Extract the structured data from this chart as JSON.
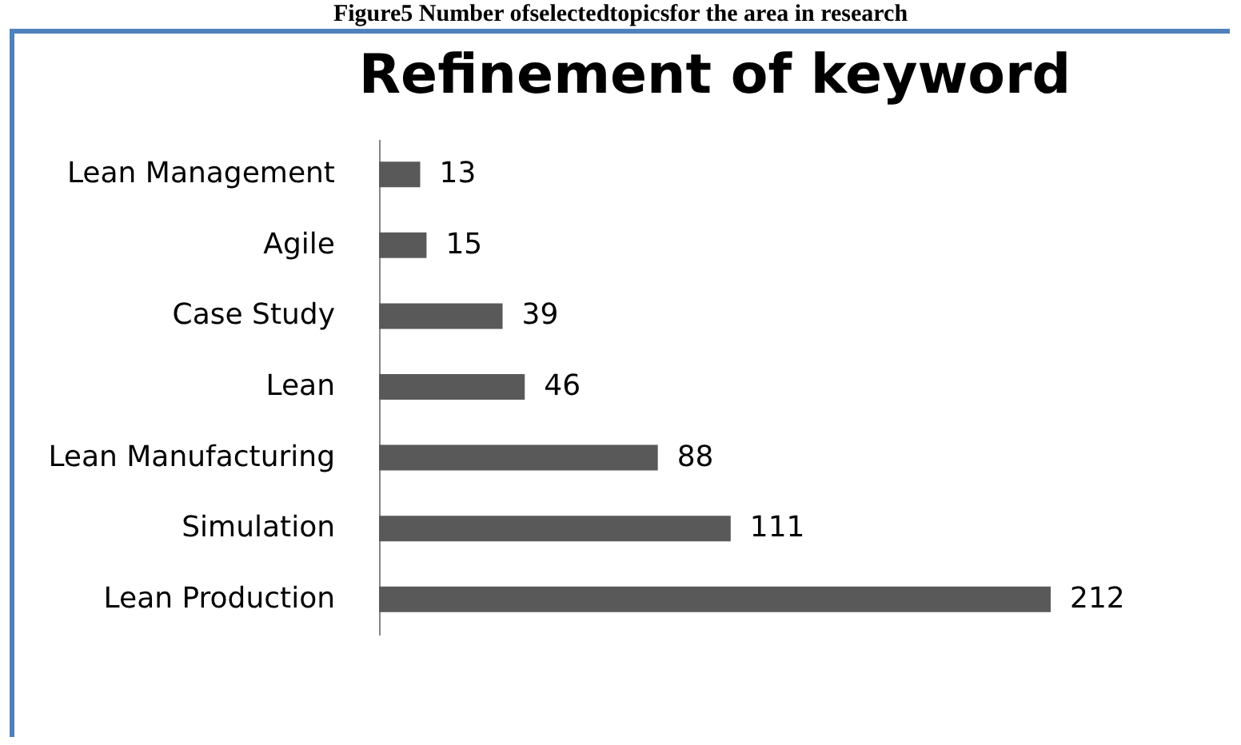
{
  "chart_data": {
    "type": "bar",
    "orientation": "horizontal",
    "title": "Refinement of keyword",
    "annotations": [
      "Figure5 Number ofselectedtopicsfor the area in research"
    ],
    "categories": [
      "Lean Management",
      "Agile",
      "Case Study",
      "Lean",
      "Lean Manufacturing",
      "Simulation",
      "Lean Production"
    ],
    "values": [
      13,
      15,
      39,
      46,
      88,
      111,
      212
    ],
    "color": "#595959",
    "data_labels": true
  }
}
